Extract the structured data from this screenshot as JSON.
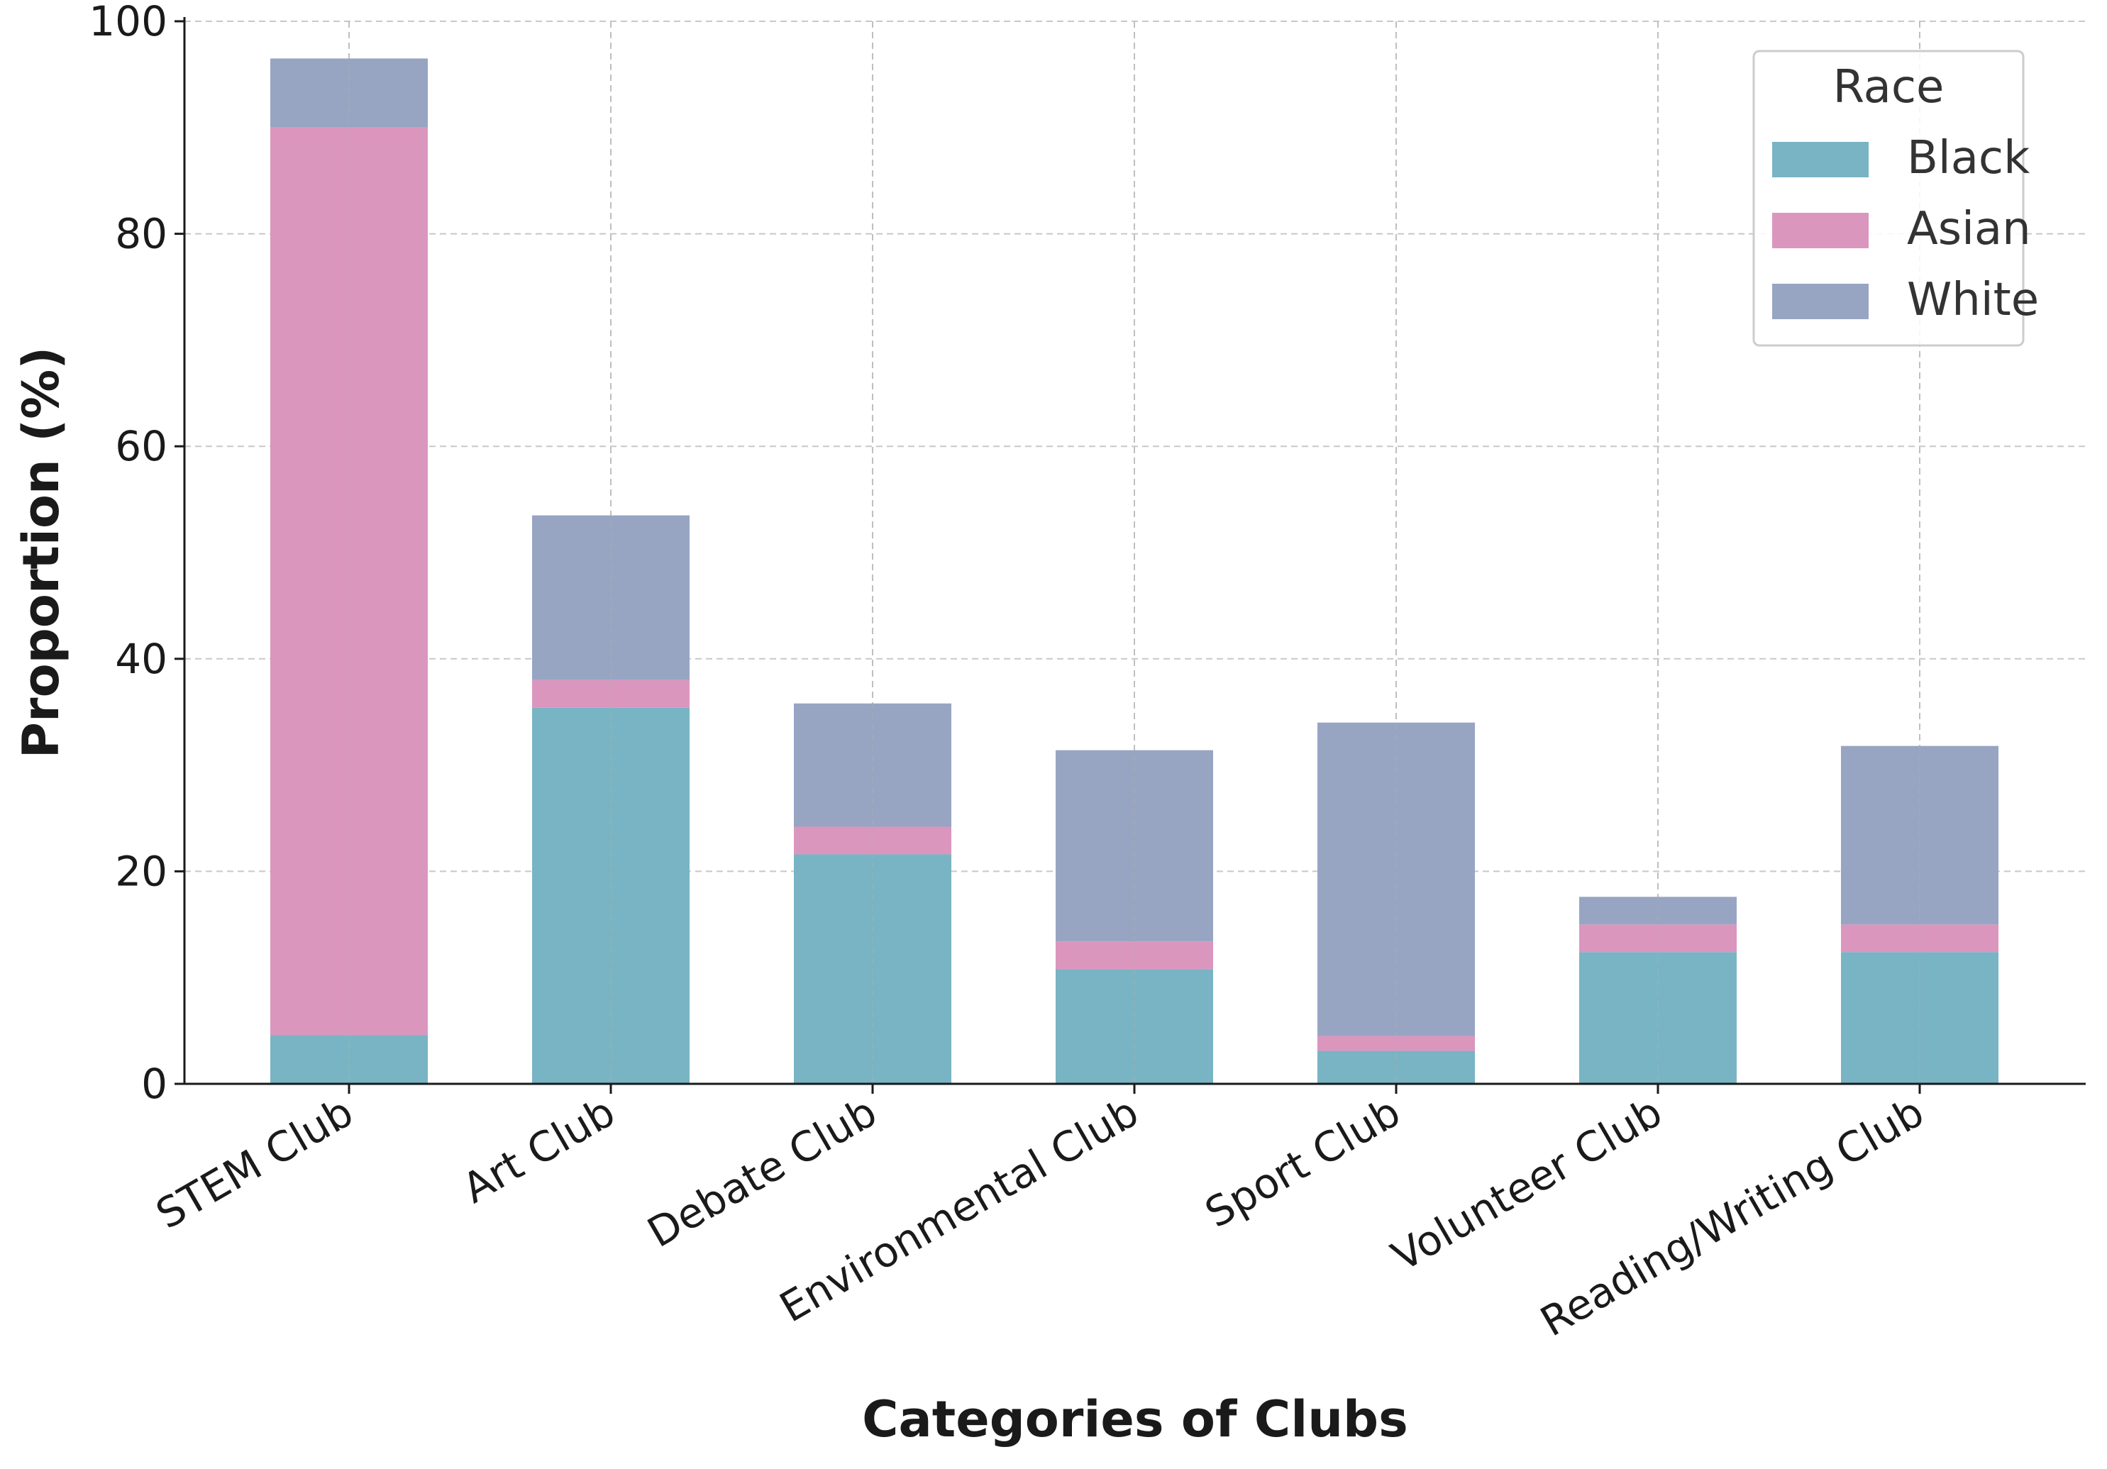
{
  "chart_data": {
    "type": "bar",
    "stacked": true,
    "categories": [
      "STEM Club",
      "Art Club",
      "Debate Club",
      "Environmental Club",
      "Sport Club",
      "Volunteer Club",
      "Reading/Writing Club"
    ],
    "series": [
      {
        "name": "Black",
        "values": [
          4.6,
          35.4,
          21.6,
          10.8,
          3.1,
          12.4,
          12.4
        ],
        "color": "#78b4c4"
      },
      {
        "name": "Asian",
        "values": [
          85.4,
          2.6,
          2.6,
          2.6,
          1.4,
          2.6,
          2.6
        ],
        "color": "#db96be"
      },
      {
        "name": "White",
        "values": [
          6.5,
          15.5,
          11.6,
          18.0,
          29.5,
          2.6,
          16.8
        ],
        "color": "#97a5c3"
      }
    ],
    "title": "",
    "xlabel": "Categories of Clubs",
    "ylabel": "Proportion (%)",
    "ylim": [
      0,
      100
    ],
    "yticks": [
      0,
      20,
      40,
      60,
      80,
      100
    ],
    "grid": true,
    "legend": {
      "title": "Race",
      "placement": "top-right"
    }
  }
}
